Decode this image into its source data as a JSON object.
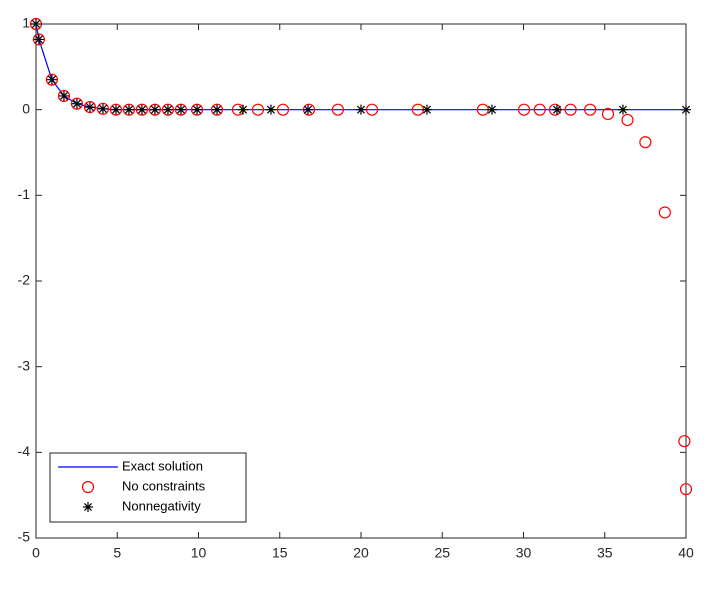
{
  "chart_data": {
    "type": "scatter",
    "xlim": [
      0,
      40
    ],
    "ylim": [
      -5,
      1
    ],
    "xticks": [
      0,
      5,
      10,
      15,
      20,
      25,
      30,
      35,
      40
    ],
    "yticks": [
      -5,
      -4,
      -3,
      -2,
      -1,
      0,
      1
    ],
    "legend": "lower left",
    "series": [
      {
        "name": "Exact solution",
        "type": "line",
        "color": "#0000ff",
        "x": [
          0,
          0.18,
          0.98,
          1.72,
          2.52,
          3.32,
          4.12,
          4.92,
          5.72,
          6.52,
          7.32,
          8.12,
          8.92,
          9.91,
          11.14,
          12.74,
          14.46,
          16.74,
          20,
          24.06,
          28.06,
          32.06,
          36.12,
          40
        ],
        "values": [
          1,
          0.82,
          0.35,
          0.16,
          0.07,
          0.03,
          0.01,
          0,
          0,
          0,
          0,
          0,
          0,
          0,
          0,
          0,
          0,
          0,
          0,
          0,
          0,
          0,
          0,
          0
        ]
      },
      {
        "name": "No constraints",
        "type": "circle",
        "color": "#ff0000",
        "x": [
          0,
          0.18,
          0.98,
          1.72,
          2.52,
          3.32,
          4.12,
          4.92,
          5.72,
          6.52,
          7.32,
          8.12,
          8.92,
          9.91,
          11.14,
          12.43,
          13.66,
          15.2,
          16.8,
          18.58,
          20.68,
          23.5,
          27.5,
          30.03,
          31.0,
          31.94,
          32.9,
          34.1,
          35.2,
          36.4,
          37.5,
          38.7,
          39.9,
          40
        ],
        "values": [
          1,
          0.82,
          0.35,
          0.16,
          0.07,
          0.03,
          0.01,
          0,
          0,
          0,
          0,
          0,
          0,
          0,
          0,
          0,
          0,
          0,
          0,
          0,
          0,
          0,
          0,
          0,
          0,
          0,
          0,
          0,
          -0.05,
          -0.12,
          -0.38,
          -1.2,
          -3.87,
          -4.43
        ]
      },
      {
        "name": "Nonnegativity",
        "type": "star",
        "color": "#000000",
        "x": [
          0,
          0.18,
          0.98,
          1.72,
          2.52,
          3.32,
          4.12,
          4.92,
          5.72,
          6.52,
          7.32,
          8.12,
          8.92,
          9.91,
          11.14,
          12.74,
          14.46,
          16.74,
          20,
          24.06,
          28.06,
          32.06,
          36.12,
          40
        ],
        "values": [
          1,
          0.82,
          0.35,
          0.16,
          0.07,
          0.03,
          0.01,
          0,
          0,
          0,
          0,
          0,
          0,
          0,
          0,
          0,
          0,
          0,
          0,
          0,
          0,
          0,
          0,
          0
        ]
      }
    ]
  }
}
